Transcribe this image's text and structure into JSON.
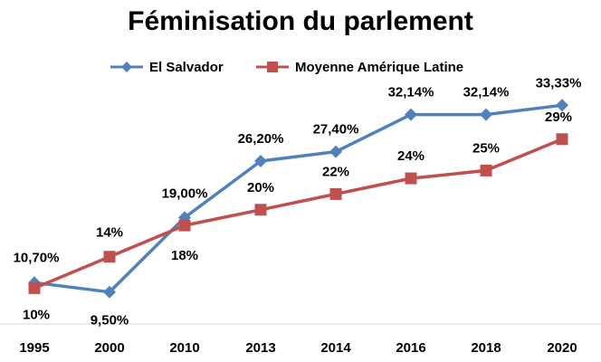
{
  "chart_data": {
    "type": "line",
    "title": "Féminisation du parlement",
    "categories": [
      "1995",
      "2000",
      "2010",
      "2013",
      "2014",
      "2016",
      "2018",
      "2020"
    ],
    "ylim": [
      0,
      40
    ],
    "grid": false,
    "legend_position": "top",
    "series": [
      {
        "name": "El Salvador",
        "color": "#4F81BD",
        "marker": "diamond",
        "values": [
          10.7,
          9.5,
          19.0,
          26.2,
          27.4,
          32.14,
          32.14,
          33.33
        ],
        "labels": [
          "10,70%",
          "9,50%",
          "19,00%",
          "26,20%",
          "27,40%",
          "32,14%",
          "32,14%",
          "33,33%"
        ]
      },
      {
        "name": "Moyenne Amérique Latine",
        "color": "#C0504D",
        "marker": "square",
        "values": [
          10,
          14,
          18,
          20,
          22,
          24,
          25,
          29
        ],
        "labels": [
          "10%",
          "14%",
          "18%",
          "20%",
          "22%",
          "24%",
          "25%",
          "29%"
        ]
      }
    ]
  }
}
